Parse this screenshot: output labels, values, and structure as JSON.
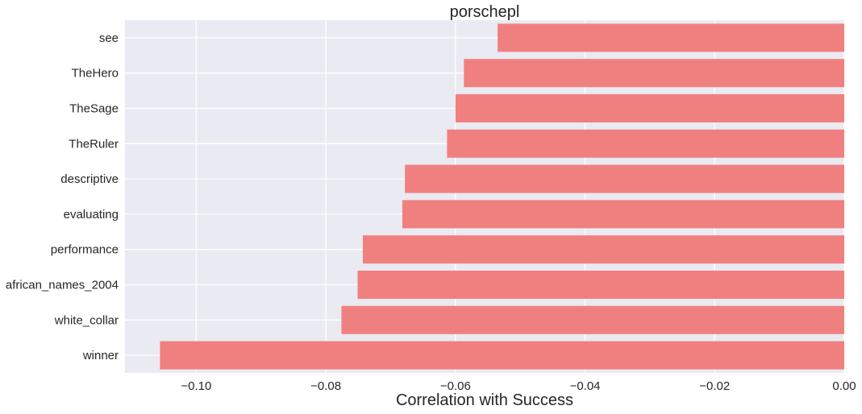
{
  "chart_data": {
    "type": "bar",
    "orientation": "horizontal",
    "title": "porschepl",
    "xlabel": "Correlation with Success",
    "ylabel": "",
    "categories": [
      "see",
      "TheHero",
      "TheSage",
      "TheRuler",
      "descriptive",
      "evaluating",
      "performance",
      "african_names_2004",
      "white_collar",
      "winner"
    ],
    "values": [
      -0.0535,
      -0.0587,
      -0.06,
      -0.0613,
      -0.0678,
      -0.0682,
      -0.0743,
      -0.0751,
      -0.0776,
      -0.1056
    ],
    "xlim": [
      -0.111,
      0.0
    ],
    "xticks": [
      -0.1,
      -0.08,
      -0.06,
      -0.04,
      -0.02,
      0.0
    ],
    "xtick_labels": [
      "−0.10",
      "−0.08",
      "−0.06",
      "−0.04",
      "−0.02",
      "0.00"
    ],
    "grid": true,
    "colors": {
      "bar": "#f08080",
      "background": "#eaeaf2",
      "grid": "#ffffff"
    }
  }
}
